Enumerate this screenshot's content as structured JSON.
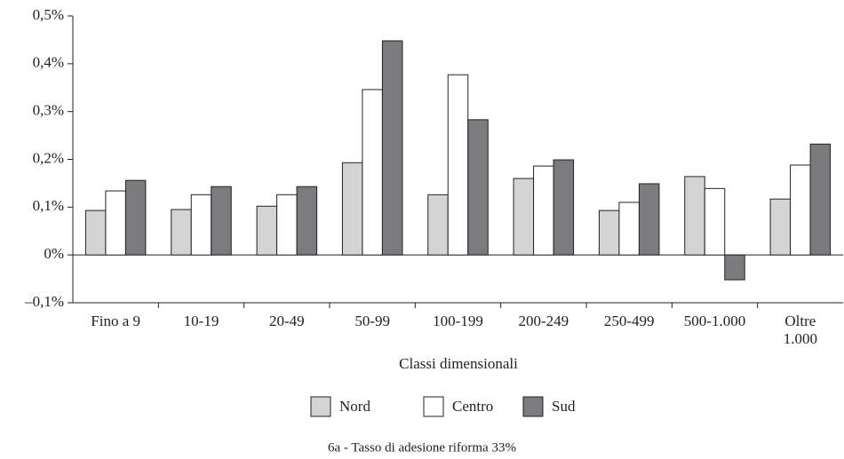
{
  "chart_data": {
    "type": "bar",
    "x_label": "Classi dimensionali",
    "caption": "6a - Tasso di adesione riforma 33%",
    "categories": [
      "Fino a 9",
      "10-19",
      "20-49",
      "50-99",
      "100-199",
      "200-249",
      "250-499",
      "500-1.000",
      "Oltre\n1.000"
    ],
    "series": [
      {
        "name": "Nord",
        "color": "#d4d4d4",
        "values": [
          0.093,
          0.095,
          0.102,
          0.193,
          0.126,
          0.16,
          0.093,
          0.164,
          0.117
        ]
      },
      {
        "name": "Centro",
        "color": "#ffffff",
        "values": [
          0.134,
          0.126,
          0.126,
          0.346,
          0.377,
          0.186,
          0.11,
          0.139,
          0.188
        ]
      },
      {
        "name": "Sud",
        "color": "#7b7b7d",
        "values": [
          0.156,
          0.143,
          0.143,
          0.448,
          0.283,
          0.199,
          0.149,
          -0.052,
          0.232
        ]
      }
    ],
    "ylim": [
      -0.1,
      0.5
    ],
    "yticks": [
      {
        "value": -0.1,
        "label": "–0,1%"
      },
      {
        "value": 0,
        "label": "0%"
      },
      {
        "value": 0.1,
        "label": "0,1%"
      },
      {
        "value": 0.2,
        "label": "0,2%"
      },
      {
        "value": 0.3,
        "label": "0,3%"
      },
      {
        "value": 0.4,
        "label": "0,4%"
      },
      {
        "value": 0.5,
        "label": "0,5%"
      }
    ],
    "grid": false,
    "legend": "bottom"
  }
}
